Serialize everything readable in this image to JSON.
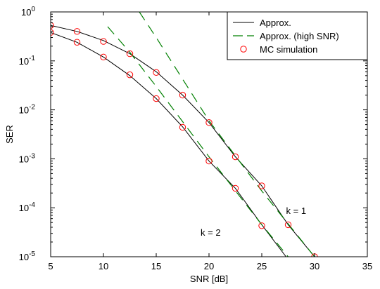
{
  "chart_data": {
    "type": "line",
    "xlabel": "SNR [dB]",
    "ylabel": "SER",
    "xlim": [
      5,
      35
    ],
    "ylim": [
      1e-05,
      1
    ],
    "yscale": "log",
    "x_ticks": [
      5,
      10,
      15,
      20,
      25,
      30,
      35
    ],
    "y_ticks": [
      {
        "value": 1e-05,
        "base": "10",
        "exp": "-5"
      },
      {
        "value": 0.0001,
        "base": "10",
        "exp": "-4"
      },
      {
        "value": 0.001,
        "base": "10",
        "exp": "-3"
      },
      {
        "value": 0.01,
        "base": "10",
        "exp": "-2"
      },
      {
        "value": 0.1,
        "base": "10",
        "exp": "-1"
      },
      {
        "value": 1,
        "base": "10",
        "exp": "0"
      }
    ],
    "grid": false,
    "legend_position": "top-right",
    "legend": [
      {
        "label": "Approx.",
        "style": "line",
        "color": "#000000"
      },
      {
        "label": "Approx. (high SNR)",
        "style": "dashed",
        "color": "#008000"
      },
      {
        "label": "MC simulation",
        "style": "circle",
        "color": "#ff0000"
      }
    ],
    "series": [
      {
        "kind": "approx",
        "group": "k = 1",
        "color": "#000000",
        "x": [
          5,
          7.5,
          10,
          12.5,
          15,
          17.5,
          20,
          22.5,
          25,
          27.5,
          30
        ],
        "y": [
          0.53,
          0.4,
          0.26,
          0.14,
          0.06,
          0.02,
          0.0055,
          0.0011,
          0.00028,
          4.5e-05,
          1e-05
        ]
      },
      {
        "kind": "approx",
        "group": "k = 2",
        "color": "#000000",
        "x": [
          5,
          7.5,
          10,
          12.5,
          15,
          17.5,
          20,
          22.5,
          25,
          27.3
        ],
        "y": [
          0.38,
          0.24,
          0.12,
          0.05,
          0.017,
          0.0045,
          0.0009,
          0.00025,
          4.5e-05,
          1e-05
        ]
      },
      {
        "kind": "high_snr",
        "group": "k = 1",
        "color": "#008000",
        "x": [
          13.4,
          15,
          20,
          25,
          30
        ],
        "y": [
          1,
          0.3,
          0.006,
          0.00022,
          1e-05
        ]
      },
      {
        "kind": "high_snr",
        "group": "k = 2",
        "color": "#008000",
        "x": [
          10.4,
          12.5,
          15,
          20,
          25,
          27.5
        ],
        "y": [
          0.5,
          0.15,
          0.03,
          0.0011,
          4.5e-05,
          1e-05
        ]
      },
      {
        "kind": "mc",
        "group": "k = 1",
        "color": "#ff0000",
        "x": [
          5,
          7.5,
          10,
          12.5,
          15,
          17.5,
          20,
          22.5,
          25,
          27.5,
          30
        ],
        "y": [
          0.53,
          0.4,
          0.25,
          0.14,
          0.058,
          0.02,
          0.0055,
          0.0011,
          0.00028,
          4.5e-05,
          1e-05
        ]
      },
      {
        "kind": "mc",
        "group": "k = 2",
        "color": "#ff0000",
        "x": [
          5,
          7.5,
          10,
          12.5,
          15,
          17.5,
          20,
          22.5,
          25
        ],
        "y": [
          0.38,
          0.24,
          0.12,
          0.052,
          0.017,
          0.0044,
          0.0009,
          0.00025,
          4.3e-05
        ]
      }
    ],
    "annotations": [
      {
        "text": "k = 1",
        "x": 27.3,
        "y": 7.5e-05
      },
      {
        "text": "k = 2",
        "x": 19.2,
        "y": 2.7e-05
      }
    ]
  }
}
